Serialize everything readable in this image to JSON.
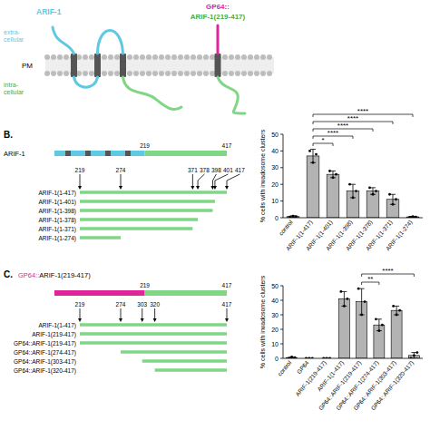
{
  "panel_a": {
    "arif1": "ARIF-1",
    "gp64_tag": "GP64::",
    "gp64_protein": "ARIF-1(219-417)",
    "extracellular": [
      "extra-",
      "cellular"
    ],
    "membrane": "PM",
    "intracellular": [
      "intra-",
      "cellular"
    ]
  },
  "panel_b": {
    "letter": "B.",
    "protein": "ARIF-1",
    "domain_labels": [
      219,
      417
    ],
    "markers": [
      219,
      274,
      371,
      378,
      398,
      401,
      417
    ],
    "constructs": [
      {
        "label": "ARIF-1(1-417)",
        "start": 1,
        "end": 417
      },
      {
        "label": "ARIF-1(1-401)",
        "start": 1,
        "end": 401
      },
      {
        "label": "ARIF-1(1-398)",
        "start": 1,
        "end": 398
      },
      {
        "label": "ARIF-1(1-378)",
        "start": 1,
        "end": 378
      },
      {
        "label": "ARIF-1(1-371)",
        "start": 1,
        "end": 371
      },
      {
        "label": "ARIF-1(1-274)",
        "start": 1,
        "end": 274
      }
    ]
  },
  "panel_c": {
    "letter": "C.",
    "tag": "GP64::",
    "protein": "ARIF-1(219-417)",
    "domain_labels": [
      219,
      417
    ],
    "markers": [
      219,
      274,
      303,
      320,
      417
    ],
    "constructs": [
      {
        "label": "ARIF-1(1-417)",
        "start": 1,
        "end": 417
      },
      {
        "label": "ARIF-1(219-417)",
        "start": 219,
        "end": 417
      },
      {
        "label": "GP64::ARIF-1(219-417)",
        "start": 219,
        "end": 417
      },
      {
        "label": "GP64::ARIF-1(274-417)",
        "start": 274,
        "end": 417
      },
      {
        "label": "GP64::ARIF-1(303-417)",
        "start": 303,
        "end": 417
      },
      {
        "label": "GP64::ARIF-1(320-417)",
        "start": 320,
        "end": 417
      }
    ]
  },
  "chart_data": [
    {
      "type": "bar",
      "y_label": "% cells with invadosome clusters",
      "categories": [
        "control",
        "ARIF-1(1-417)",
        "ARIF-1(1-401)",
        "ARIF-1(1-398)",
        "ARIF-1(1-378)",
        "ARIF-1(1-371)",
        "ARIF-1(1-274)"
      ],
      "values": [
        0.7,
        37,
        26,
        16,
        16,
        11,
        0.5
      ],
      "errors": [
        0.5,
        4,
        2,
        4,
        2,
        3,
        0.3
      ],
      "points": [
        [
          0.4,
          1,
          0.7
        ],
        [
          40,
          33,
          38
        ],
        [
          28,
          24,
          26
        ],
        [
          20,
          12,
          16
        ],
        [
          18,
          14,
          16
        ],
        [
          14,
          8,
          11
        ],
        [
          0.3,
          0.8,
          0.4
        ]
      ],
      "color": "#b3b3b3",
      "ylim": [
        0,
        50
      ],
      "yticks": [
        0,
        10,
        20,
        30,
        40,
        50
      ],
      "significance": [
        {
          "from": "ARIF-1(1-417)",
          "to": "ARIF-1(1-401)",
          "label": "*"
        },
        {
          "from": "ARIF-1(1-417)",
          "to": "ARIF-1(1-398)",
          "label": "****"
        },
        {
          "from": "ARIF-1(1-417)",
          "to": "ARIF-1(1-378)",
          "label": "****"
        },
        {
          "from": "ARIF-1(1-417)",
          "to": "ARIF-1(1-371)",
          "label": "****"
        },
        {
          "from": "ARIF-1(1-417)",
          "to": "ARIF-1(1-274)",
          "label": "****"
        }
      ]
    },
    {
      "type": "bar",
      "y_label": "% cells with invadosome clusters",
      "categories": [
        "control",
        "GP64",
        "ARIF-1(219-417)",
        "ARIF-1(1-417)",
        "GP64::ARIF-1(219-417)",
        "GP64::ARIF-1(274-417)",
        "GP64::ARIF-1(303-417)",
        "GP64::ARIF-1(320-417)"
      ],
      "values": [
        0.5,
        0,
        0,
        41,
        39,
        23,
        33,
        2
      ],
      "errors": [
        0.5,
        0,
        0,
        5,
        9,
        4,
        3,
        2
      ],
      "points": [
        [
          0,
          1,
          0.5
        ],
        [
          0,
          0,
          0
        ],
        [
          0,
          0,
          0
        ],
        [
          46,
          36,
          41
        ],
        [
          48,
          30,
          39
        ],
        [
          27,
          19,
          23
        ],
        [
          36,
          30,
          33
        ],
        [
          0,
          2,
          4
        ]
      ],
      "color": "#b3b3b3",
      "ylim": [
        0,
        50
      ],
      "yticks": [
        0,
        10,
        20,
        30,
        40,
        50
      ],
      "significance": [
        {
          "from": "GP64::ARIF-1(219-417)",
          "to": "GP64::ARIF-1(274-417)",
          "label": "**"
        },
        {
          "from": "GP64::ARIF-1(219-417)",
          "to": "GP64::ARIF-1(320-417)",
          "label": "****"
        }
      ]
    }
  ]
}
